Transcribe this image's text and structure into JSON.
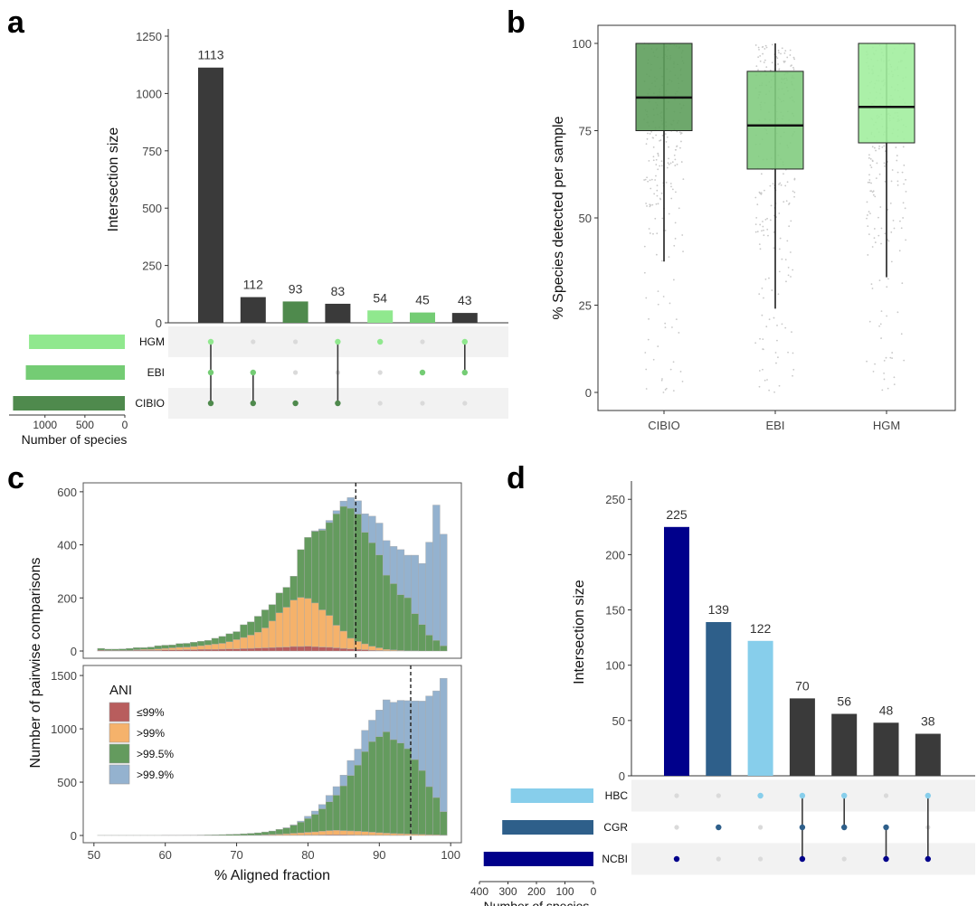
{
  "panels": {
    "a": "a",
    "b": "b",
    "c": "c",
    "d": "d"
  },
  "chart_data": [
    {
      "id": "a",
      "type": "bar",
      "kind": "upset",
      "ylabel": "Intersection size",
      "ylim": [
        0,
        1250
      ],
      "yticks": [
        "0",
        "250",
        "500",
        "750",
        "1000",
        "1250"
      ],
      "values": [
        1113,
        112,
        93,
        83,
        54,
        45,
        43
      ],
      "labels": [
        "1113",
        "112",
        "93",
        "83",
        "54",
        "45",
        "43"
      ],
      "bar_colors": [
        "#3a3a3a",
        "#3a3a3a",
        "#4f8a4d",
        "#3a3a3a",
        "#90e88e",
        "#74cc74",
        "#3a3a3a"
      ],
      "sets": [
        {
          "name": "HGM",
          "color": "#90e88e",
          "size": 1200
        },
        {
          "name": "EBI",
          "color": "#74cc74",
          "size": 1240
        },
        {
          "name": "CIBIO",
          "color": "#4f8a4d",
          "size": 1400
        }
      ],
      "set_axis_ticks": [
        "1000",
        "500",
        "0"
      ],
      "set_axis_label": "Number of species",
      "membership": [
        [
          0,
          1,
          2
        ],
        [
          1,
          2
        ],
        [
          2
        ],
        [
          0,
          2
        ],
        [
          0
        ],
        [
          1
        ],
        [
          0,
          1
        ]
      ]
    },
    {
      "id": "b",
      "type": "box",
      "ylabel": "% Species detected per sample",
      "ylim": [
        0,
        100
      ],
      "yticks": [
        "0",
        "25",
        "50",
        "75",
        "100"
      ],
      "categories": [
        "CIBIO",
        "EBI",
        "HGM"
      ],
      "boxes": [
        {
          "q1": 75,
          "median": 84.5,
          "q3": 100,
          "whisker_low": 37.5,
          "whisker_high": 100,
          "color": "#5e9e5c"
        },
        {
          "q1": 64,
          "median": 76.5,
          "q3": 92,
          "whisker_low": 24,
          "whisker_high": 100,
          "color": "#82cc80"
        },
        {
          "q1": 71.5,
          "median": 81.8,
          "q3": 100,
          "whisker_low": 33,
          "whisker_high": 100,
          "color": "#a2ee9e"
        }
      ]
    },
    {
      "id": "c",
      "type": "bar",
      "kind": "stacked-histogram",
      "xlabel": "% Aligned fraction",
      "ylabel": "Number of pairwise comparisons",
      "xlim": [
        48.5,
        101.5
      ],
      "xticks": [
        "50",
        "60",
        "70",
        "80",
        "90",
        "100"
      ],
      "legend_title": "ANI",
      "legend": [
        "≤99%",
        ">99%",
        ">99.5%",
        ">99.9%"
      ],
      "colors": [
        "#b85d5d",
        "#f5b26b",
        "#649b5e",
        "#94b2cf"
      ],
      "top": {
        "ylim": [
          0,
          620
        ],
        "yticks": [
          "0",
          "200",
          "400",
          "600"
        ],
        "vline": 86.7,
        "x": [
          51,
          52,
          53,
          54,
          55,
          56,
          57,
          58,
          59,
          60,
          61,
          62,
          63,
          64,
          65,
          66,
          67,
          68,
          69,
          70,
          71,
          72,
          73,
          74,
          75,
          76,
          77,
          78,
          79,
          80,
          81,
          82,
          83,
          84,
          85,
          86,
          87,
          88,
          89,
          90,
          91,
          92,
          93,
          94,
          95,
          96,
          97,
          98,
          99
        ],
        "series": [
          [
            3,
            2,
            2,
            2,
            2,
            3,
            3,
            3,
            3,
            4,
            4,
            4,
            5,
            5,
            6,
            6,
            6,
            7,
            8,
            8,
            9,
            10,
            11,
            12,
            13,
            14,
            15,
            17,
            17,
            18,
            16,
            15,
            14,
            12,
            10,
            8,
            6,
            5,
            3,
            2,
            1,
            1,
            0,
            0,
            0,
            0,
            0,
            0,
            0
          ],
          [
            0,
            0,
            0,
            0,
            0,
            2,
            3,
            3,
            5,
            6,
            8,
            10,
            10,
            12,
            14,
            17,
            20,
            22,
            27,
            35,
            42,
            50,
            60,
            75,
            100,
            130,
            150,
            175,
            185,
            180,
            165,
            140,
            120,
            85,
            65,
            40,
            30,
            22,
            15,
            10,
            5,
            3,
            2,
            1,
            1,
            0,
            0,
            0,
            0
          ],
          [
            7,
            5,
            5,
            6,
            8,
            8,
            7,
            9,
            12,
            12,
            11,
            14,
            14,
            16,
            17,
            17,
            22,
            26,
            30,
            30,
            48,
            50,
            60,
            68,
            62,
            75,
            75,
            90,
            180,
            230,
            270,
            300,
            350,
            420,
            470,
            490,
            480,
            420,
            390,
            350,
            280,
            250,
            210,
            200,
            140,
            100,
            60,
            40,
            20
          ],
          [
            0,
            0,
            0,
            0,
            0,
            0,
            0,
            0,
            0,
            0,
            0,
            0,
            0,
            0,
            0,
            0,
            0,
            0,
            0,
            0,
            0,
            0,
            0,
            0,
            0,
            0,
            0,
            0,
            0,
            0,
            2,
            5,
            8,
            12,
            20,
            40,
            50,
            70,
            100,
            120,
            130,
            140,
            170,
            160,
            220,
            230,
            350,
            510,
            420
          ]
        ]
      },
      "bottom": {
        "ylim": [
          0,
          1560
        ],
        "yticks": [
          "0",
          "500",
          "1000",
          "1500"
        ],
        "vline": 94.4,
        "x": [
          51,
          52,
          53,
          54,
          55,
          56,
          57,
          58,
          59,
          60,
          61,
          62,
          63,
          64,
          65,
          66,
          67,
          68,
          69,
          70,
          71,
          72,
          73,
          74,
          75,
          76,
          77,
          78,
          79,
          80,
          81,
          82,
          83,
          84,
          85,
          86,
          87,
          88,
          89,
          90,
          91,
          92,
          93,
          94,
          95,
          96,
          97,
          98,
          99
        ],
        "series": [
          [
            0,
            0,
            0,
            0,
            0,
            0,
            0,
            0,
            0,
            0,
            0,
            0,
            0,
            0,
            0,
            0,
            0,
            0,
            0,
            0,
            0,
            0,
            0,
            1,
            1,
            2,
            2,
            3,
            3,
            4,
            4,
            5,
            6,
            6,
            6,
            5,
            4,
            4,
            3,
            2,
            2,
            1,
            1,
            0,
            0,
            0,
            0,
            0,
            0
          ],
          [
            0,
            0,
            0,
            0,
            0,
            0,
            0,
            0,
            0,
            0,
            0,
            0,
            0,
            0,
            0,
            0,
            0,
            0,
            0,
            0,
            1,
            2,
            3,
            5,
            8,
            10,
            14,
            18,
            22,
            26,
            30,
            35,
            40,
            42,
            40,
            38,
            36,
            32,
            28,
            24,
            20,
            18,
            16,
            14,
            12,
            10,
            8,
            6,
            4
          ],
          [
            1,
            1,
            1,
            1,
            1,
            1,
            1,
            1,
            1,
            2,
            2,
            2,
            3,
            3,
            4,
            5,
            6,
            8,
            10,
            12,
            15,
            18,
            22,
            27,
            33,
            45,
            55,
            75,
            100,
            130,
            165,
            210,
            270,
            330,
            420,
            520,
            620,
            750,
            850,
            900,
            950,
            880,
            850,
            800,
            700,
            600,
            450,
            350,
            220
          ],
          [
            0,
            0,
            0,
            0,
            0,
            0,
            0,
            0,
            0,
            0,
            0,
            0,
            0,
            0,
            0,
            0,
            0,
            0,
            0,
            0,
            0,
            0,
            0,
            0,
            0,
            0,
            2,
            5,
            10,
            20,
            30,
            40,
            60,
            80,
            100,
            140,
            150,
            200,
            200,
            250,
            300,
            350,
            400,
            450,
            550,
            650,
            850,
            1000,
            1250
          ]
        ]
      }
    },
    {
      "id": "d",
      "type": "bar",
      "kind": "upset",
      "ylabel": "Intersection size",
      "ylim": [
        0,
        260
      ],
      "yticks": [
        "0",
        "50",
        "100",
        "150",
        "200",
        "250"
      ],
      "values": [
        225,
        139,
        122,
        70,
        56,
        48,
        38
      ],
      "labels": [
        "225",
        "139",
        "122",
        "70",
        "56",
        "48",
        "38"
      ],
      "bar_colors": [
        "#00008b",
        "#2e5f8a",
        "#87ceeb",
        "#3a3a3a",
        "#3a3a3a",
        "#3a3a3a",
        "#3a3a3a"
      ],
      "sets": [
        {
          "name": "HBC",
          "color": "#87ceeb",
          "size": 290
        },
        {
          "name": "CGR",
          "color": "#2e5f8a",
          "size": 320
        },
        {
          "name": "NCBI",
          "color": "#00008b",
          "size": 385
        }
      ],
      "set_axis_ticks": [
        "400",
        "300",
        "200",
        "100",
        "0"
      ],
      "set_axis_label": "Number of species",
      "membership": [
        [
          2
        ],
        [
          1
        ],
        [
          0
        ],
        [
          0,
          1,
          2
        ],
        [
          0,
          1
        ],
        [
          1,
          2
        ],
        [
          0,
          2
        ]
      ]
    }
  ]
}
